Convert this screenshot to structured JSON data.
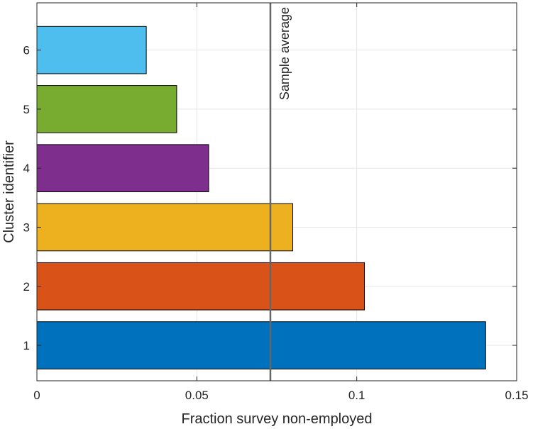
{
  "chart_data": {
    "type": "bar",
    "orientation": "horizontal",
    "categories": [
      "1",
      "2",
      "3",
      "4",
      "5",
      "6"
    ],
    "values": [
      0.1403,
      0.1024,
      0.08,
      0.0537,
      0.0437,
      0.0342
    ],
    "colors": [
      "#0072BD",
      "#D95319",
      "#EDB120",
      "#7E2F8E",
      "#77AC30",
      "#4DBEEE"
    ],
    "xlabel": "Fraction survey non-employed",
    "ylabel": "Cluster identifier",
    "xlim": [
      0,
      0.15
    ],
    "ylim": [
      0.4,
      6.8
    ],
    "xticks": [
      0,
      0.05,
      0.1,
      0.15
    ],
    "xtick_labels": [
      "0",
      "0.05",
      "0.1",
      "0.15"
    ],
    "yticks": [
      1,
      2,
      3,
      4,
      5,
      6
    ],
    "ytick_labels": [
      "1",
      "2",
      "3",
      "4",
      "5",
      "6"
    ],
    "grid": true,
    "reference_line": {
      "x": 0.073,
      "label": "Sample average",
      "color": "#666666"
    }
  }
}
